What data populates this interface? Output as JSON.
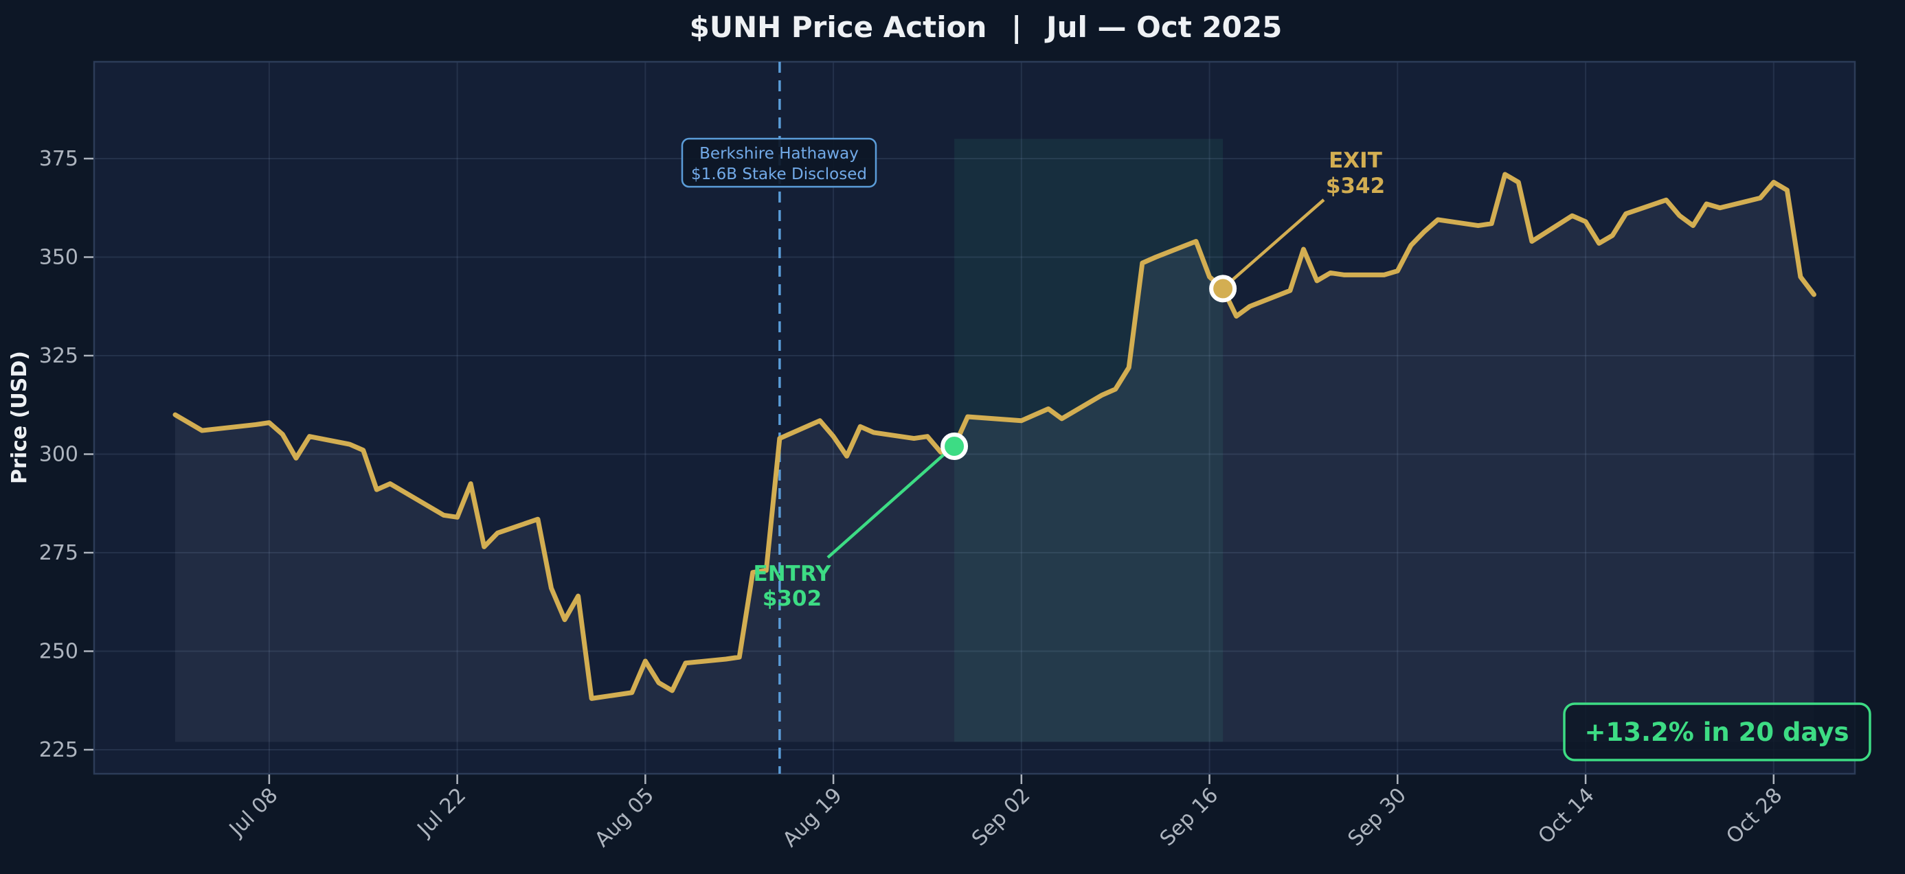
{
  "title": "$UNH Price Action  |  Jul — Oct 2025",
  "y_axis": {
    "label": "Price (USD)",
    "tick_labels": [
      "375",
      "350",
      "325",
      "300",
      "275",
      "250",
      "225"
    ],
    "tick_values": [
      375,
      350,
      325,
      300,
      275,
      250,
      225
    ]
  },
  "x_axis": {
    "ticks": [
      {
        "date": "2025-07-08",
        "label": "Jul 08"
      },
      {
        "date": "2025-07-22",
        "label": "Jul 22"
      },
      {
        "date": "2025-08-05",
        "label": "Aug 05"
      },
      {
        "date": "2025-08-19",
        "label": "Aug 19"
      },
      {
        "date": "2025-09-02",
        "label": "Sep 02"
      },
      {
        "date": "2025-09-16",
        "label": "Sep 16"
      },
      {
        "date": "2025-09-30",
        "label": "Sep 30"
      },
      {
        "date": "2025-10-14",
        "label": "Oct 14"
      },
      {
        "date": "2025-10-28",
        "label": "Oct 28"
      }
    ]
  },
  "annotation": {
    "line1": "Berkshire Hathaway",
    "line2": "$1.6B Stake Disclosed",
    "date": "2025-08-15"
  },
  "entry": {
    "label": "ENTRY",
    "price_label": "$302",
    "date": "2025-08-28",
    "price": 302
  },
  "exit": {
    "label": "EXIT",
    "price_label": "$342",
    "date": "2025-09-17",
    "price": 342
  },
  "badge": {
    "text": "+13.2% in 20 days"
  },
  "colors": {
    "figure_bg": "#0d1726",
    "plot_bg": "#141f36",
    "grid": "rgba(150,170,205,0.13)",
    "spine": "#2c3c58",
    "price_line": "#d3ae52",
    "area_fill": "rgba(196,208,228,0.08)",
    "band_fill": "rgba(64,224,160,0.08)",
    "event_blue": "#5b9dd9",
    "annotation_text": "#72aae8",
    "entry_green": "#3ddc84",
    "badge_green": "#3ddc84",
    "tick_text": "#aeb5bf",
    "title_text": "#eef1f4",
    "marker_ring": "#ffffff"
  },
  "chart_data": {
    "type": "line",
    "title": "$UNH Price Action | Jul — Oct 2025",
    "xlabel": "",
    "ylabel": "Price (USD)",
    "ylim": [
      218,
      400
    ],
    "x_range": [
      "2025-07-01",
      "2025-10-31"
    ],
    "grid": true,
    "legend": "none",
    "baseline_price": 227,
    "band": {
      "from": "2025-08-28",
      "to": "2025-09-17",
      "top_price": 380,
      "bottom_price": 227
    },
    "event_line": {
      "date": "2025-08-15",
      "style": "dashed",
      "label": "Berkshire Hathaway $1.6B Stake Disclosed"
    },
    "markers": [
      {
        "name": "entry",
        "date": "2025-08-28",
        "price": 302,
        "color": "#3ddc84"
      },
      {
        "name": "exit",
        "date": "2025-09-17",
        "price": 342,
        "color": "#d3ae52"
      }
    ],
    "points": [
      [
        "2025-07-01",
        310
      ],
      [
        "2025-07-02",
        308
      ],
      [
        "2025-07-03",
        306
      ],
      [
        "2025-07-07",
        307.5
      ],
      [
        "2025-07-08",
        308
      ],
      [
        "2025-07-09",
        305
      ],
      [
        "2025-07-10",
        299
      ],
      [
        "2025-07-11",
        304.5
      ],
      [
        "2025-07-14",
        302.5
      ],
      [
        "2025-07-15",
        301
      ],
      [
        "2025-07-16",
        291
      ],
      [
        "2025-07-17",
        292.5
      ],
      [
        "2025-07-18",
        290.5
      ],
      [
        "2025-07-21",
        284.5
      ],
      [
        "2025-07-22",
        284
      ],
      [
        "2025-07-23",
        292.5
      ],
      [
        "2025-07-24",
        276.5
      ],
      [
        "2025-07-25",
        280
      ],
      [
        "2025-07-28",
        283.5
      ],
      [
        "2025-07-29",
        266
      ],
      [
        "2025-07-30",
        258
      ],
      [
        "2025-07-31",
        264
      ],
      [
        "2025-08-01",
        238
      ],
      [
        "2025-08-04",
        239.5
      ],
      [
        "2025-08-05",
        247.5
      ],
      [
        "2025-08-06",
        242
      ],
      [
        "2025-08-07",
        240
      ],
      [
        "2025-08-08",
        247
      ],
      [
        "2025-08-11",
        248
      ],
      [
        "2025-08-12",
        248.5
      ],
      [
        "2025-08-13",
        270
      ],
      [
        "2025-08-14",
        270.5
      ],
      [
        "2025-08-15",
        304
      ],
      [
        "2025-08-18",
        308.5
      ],
      [
        "2025-08-19",
        304.5
      ],
      [
        "2025-08-20",
        299.5
      ],
      [
        "2025-08-21",
        307
      ],
      [
        "2025-08-22",
        305.5
      ],
      [
        "2025-08-25",
        304
      ],
      [
        "2025-08-26",
        304.5
      ],
      [
        "2025-08-27",
        300.5
      ],
      [
        "2025-08-28",
        302
      ],
      [
        "2025-08-29",
        309.5
      ],
      [
        "2025-09-02",
        308.5
      ],
      [
        "2025-09-03",
        310
      ],
      [
        "2025-09-04",
        311.5
      ],
      [
        "2025-09-05",
        309
      ],
      [
        "2025-09-08",
        315
      ],
      [
        "2025-09-09",
        316.5
      ],
      [
        "2025-09-10",
        322
      ],
      [
        "2025-09-11",
        348.5
      ],
      [
        "2025-09-12",
        350
      ],
      [
        "2025-09-15",
        354
      ],
      [
        "2025-09-16",
        345
      ],
      [
        "2025-09-17",
        342
      ],
      [
        "2025-09-18",
        335
      ],
      [
        "2025-09-19",
        337.5
      ],
      [
        "2025-09-22",
        341.5
      ],
      [
        "2025-09-23",
        352
      ],
      [
        "2025-09-24",
        344
      ],
      [
        "2025-09-25",
        346
      ],
      [
        "2025-09-26",
        345.5
      ],
      [
        "2025-09-29",
        345.5
      ],
      [
        "2025-09-30",
        346.5
      ],
      [
        "2025-10-01",
        353
      ],
      [
        "2025-10-02",
        356.5
      ],
      [
        "2025-10-03",
        359.5
      ],
      [
        "2025-10-06",
        358
      ],
      [
        "2025-10-07",
        358.5
      ],
      [
        "2025-10-08",
        371
      ],
      [
        "2025-10-09",
        369
      ],
      [
        "2025-10-10",
        354
      ],
      [
        "2025-10-13",
        360.5
      ],
      [
        "2025-10-14",
        359
      ],
      [
        "2025-10-15",
        353.5
      ],
      [
        "2025-10-16",
        355.5
      ],
      [
        "2025-10-17",
        361
      ],
      [
        "2025-10-20",
        364.5
      ],
      [
        "2025-10-21",
        360.5
      ],
      [
        "2025-10-22",
        358
      ],
      [
        "2025-10-23",
        363.5
      ],
      [
        "2025-10-24",
        362.5
      ],
      [
        "2025-10-27",
        365
      ],
      [
        "2025-10-28",
        369
      ],
      [
        "2025-10-29",
        367
      ],
      [
        "2025-10-30",
        345
      ],
      [
        "2025-10-31",
        340.5
      ]
    ]
  }
}
